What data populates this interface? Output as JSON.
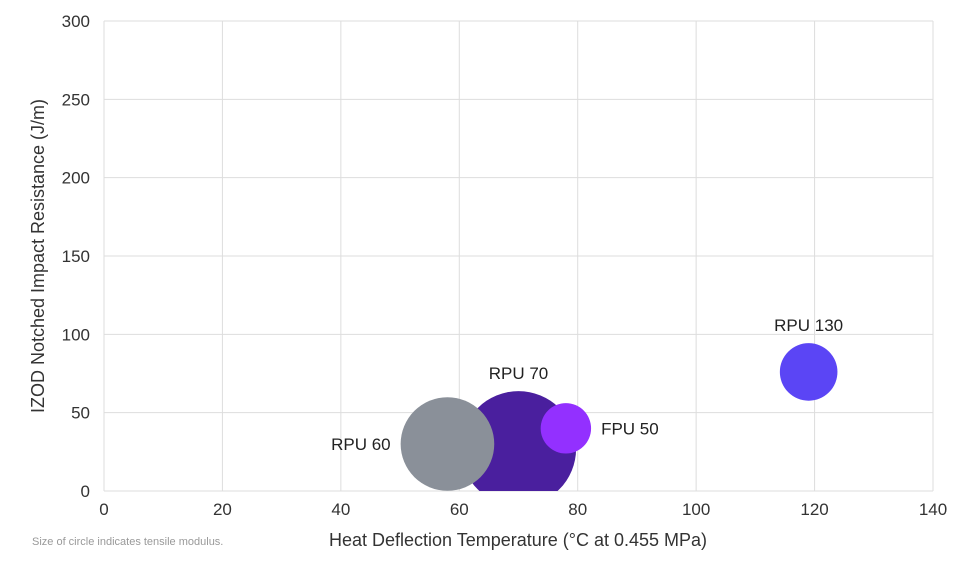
{
  "chart_data": {
    "type": "scatter",
    "xlabel": "Heat Deflection Temperature (°C at 0.455 MPa)",
    "ylabel": "IZOD Notched Impact Resistance (J/m)",
    "xlim": [
      0,
      140
    ],
    "ylim": [
      0,
      300
    ],
    "xticks": [
      "0",
      "20",
      "40",
      "60",
      "80",
      "100",
      "120",
      "140"
    ],
    "yticks": [
      "0",
      "50",
      "100",
      "150",
      "200",
      "250",
      "300"
    ],
    "grid": true,
    "size_encoding": "tensile modulus",
    "points": [
      {
        "label": "RPU 70",
        "x": 70,
        "y": 27,
        "size": 3.2,
        "color": "#4a1f9e",
        "label_side": "top"
      },
      {
        "label": "RPU 60",
        "x": 58,
        "y": 30,
        "size": 2.6,
        "color": "#8a9099",
        "label_side": "left"
      },
      {
        "label": "FPU 50",
        "x": 78,
        "y": 40,
        "size": 1.4,
        "color": "#9330ff",
        "label_side": "right"
      },
      {
        "label": "RPU 130",
        "x": 119,
        "y": 76,
        "size": 1.6,
        "color": "#5b45f5",
        "label_side": "top"
      }
    ]
  },
  "footnote": "Size of circle indicates tensile modulus."
}
